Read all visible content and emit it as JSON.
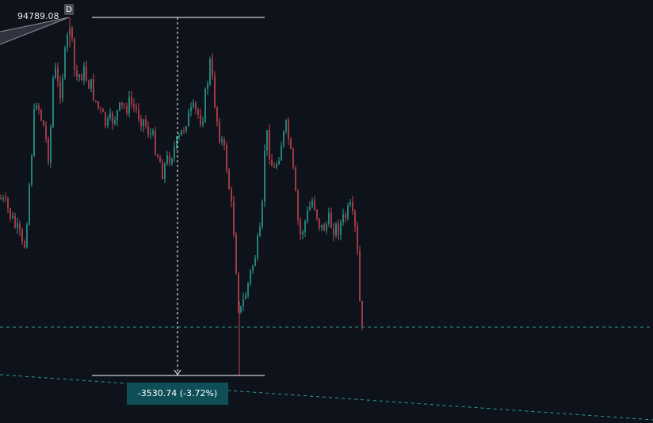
{
  "measure": {
    "high_label": "94789.08",
    "interval_badge": "D",
    "change_label": "-3530.74 (-3.72%)"
  }
}
